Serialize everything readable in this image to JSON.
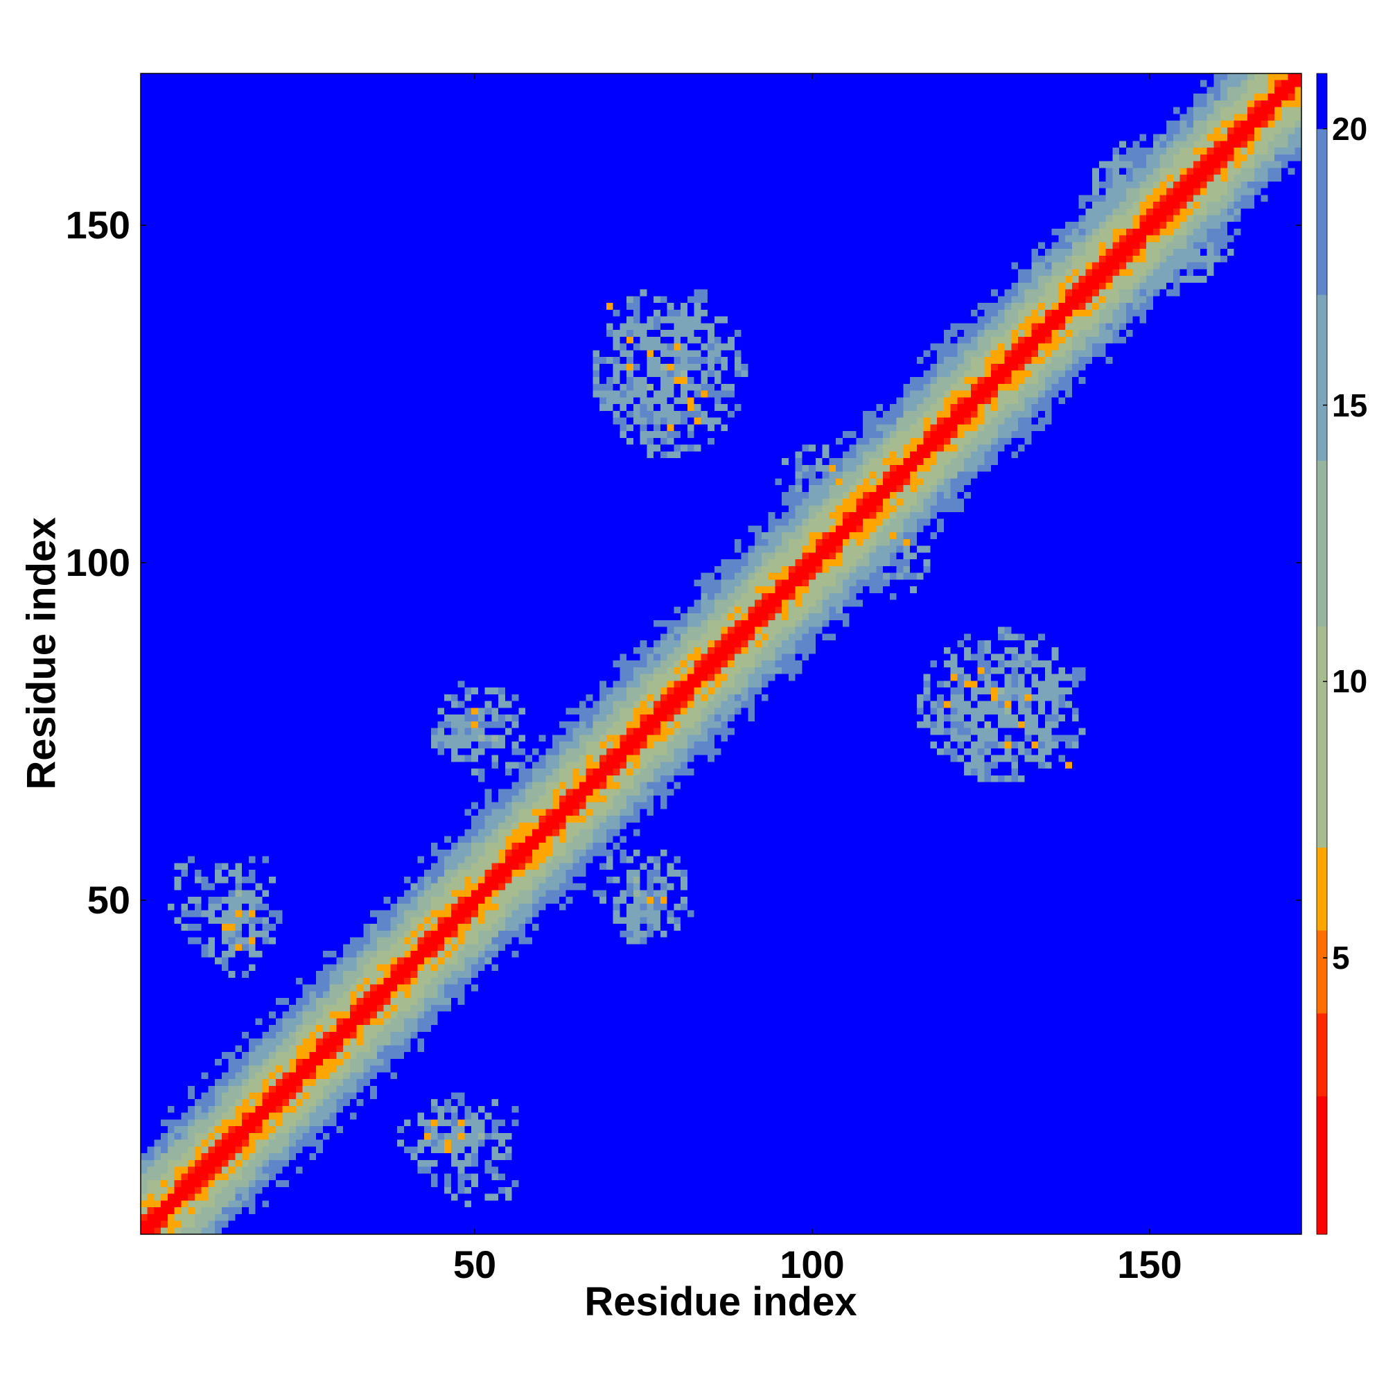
{
  "chart_data": {
    "type": "heatmap",
    "title": "",
    "xlabel": "Residue index",
    "ylabel": "Residue index",
    "xlim": [
      1,
      172
    ],
    "ylim": [
      1,
      172
    ],
    "x_ticks": [
      "50",
      "100",
      "150"
    ],
    "y_ticks": [
      "50",
      "100",
      "150"
    ],
    "colorbar": {
      "range": [
        0,
        21
      ],
      "ticks": [
        "5",
        "10",
        "15",
        "20"
      ],
      "stops": [
        {
          "value": 0,
          "color": "#ff0000"
        },
        {
          "value": 4,
          "color": "#ff5500"
        },
        {
          "value": 7,
          "color": "#ffaa00"
        },
        {
          "value": 8.5,
          "color": "#a6bb8f"
        },
        {
          "value": 13,
          "color": "#8fb0b0"
        },
        {
          "value": 19,
          "color": "#5e86c8"
        },
        {
          "value": 20,
          "color": "#0000ff"
        }
      ],
      "background_color": "#0000ff"
    },
    "matrix_description": "symmetric residue-residue distance map",
    "diagonal_band": {
      "core_width": 2,
      "orange_width": 3,
      "green_width": 10
    },
    "contact_clusters": [
      {
        "x": [
          68,
          90
        ],
        "y": [
          116,
          141
        ],
        "core": [
          [
            73,
            129
          ],
          [
            76,
            131
          ],
          [
            80,
            132
          ],
          [
            81,
            127
          ],
          [
            84,
            125
          ],
          [
            82,
            123
          ],
          [
            79,
            120
          ],
          [
            70,
            138
          ]
        ]
      },
      {
        "x": [
          116,
          140
        ],
        "y": [
          68,
          90
        ],
        "core": [
          [
            121,
            83
          ],
          [
            124,
            82
          ],
          [
            127,
            80
          ],
          [
            129,
            79
          ],
          [
            131,
            76
          ],
          [
            133,
            73
          ],
          [
            138,
            70
          ]
        ]
      },
      {
        "x": [
          140,
          163
        ],
        "y": [
          140,
          163
        ],
        "core": [
          [
            150,
            153
          ],
          [
            152,
            155
          ],
          [
            155,
            158
          ],
          [
            158,
            160
          ]
        ]
      },
      {
        "x": [
          44,
          57
        ],
        "y": [
          70,
          82
        ],
        "core": [
          [
            50,
            78
          ]
        ]
      },
      {
        "x": [
          68,
          80
        ],
        "y": [
          44,
          58
        ],
        "core": [
          [
            76,
            50
          ]
        ]
      },
      {
        "x": [
          39,
          55
        ],
        "y": [
          8,
          20
        ],
        "core": [
          [
            43,
            15
          ],
          [
            46,
            14
          ],
          [
            48,
            15
          ]
        ]
      },
      {
        "x": [
          11,
          21
        ],
        "y": [
          42,
          57
        ],
        "core": [
          [
            13,
            46
          ],
          [
            17,
            48
          ],
          [
            17,
            44
          ]
        ]
      },
      {
        "x": [
          5,
          9
        ],
        "y": [
          46,
          56
        ],
        "core": []
      },
      {
        "x": [
          105,
          118
        ],
        "y": [
          95,
          115
        ],
        "core": [
          [
            103,
            114
          ],
          [
            107,
            109
          ],
          [
            112,
            104
          ]
        ]
      }
    ]
  }
}
